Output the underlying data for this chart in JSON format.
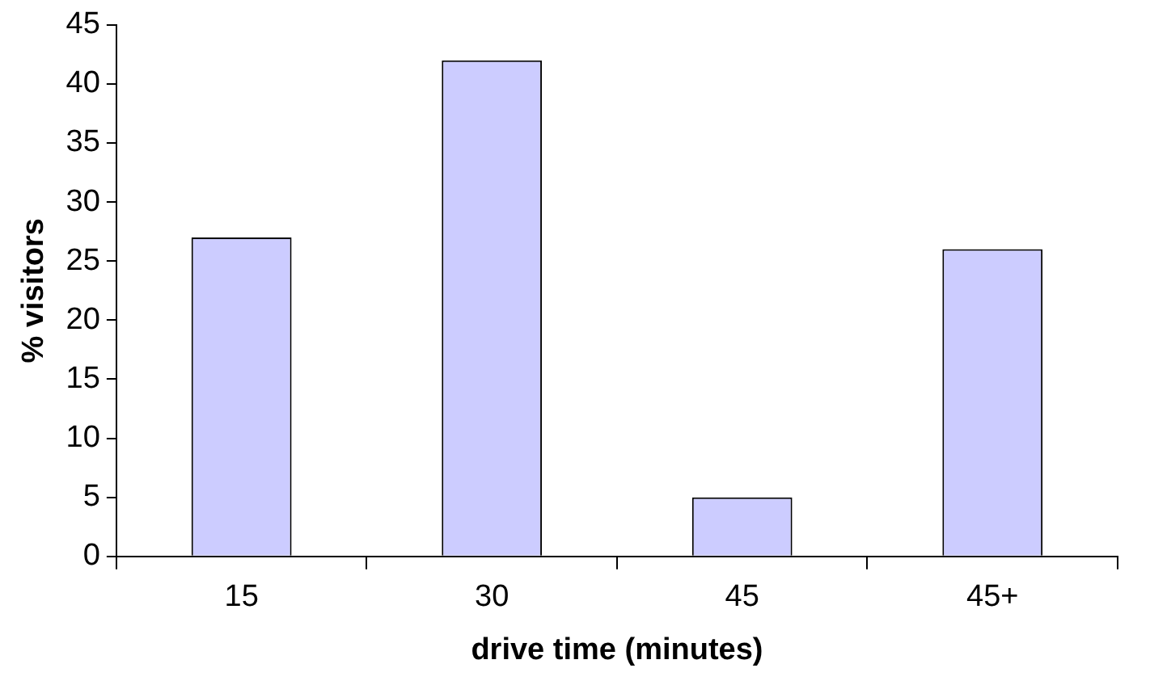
{
  "chart_data": {
    "type": "bar",
    "xlabel": "drive time (minutes)",
    "ylabel": "% visitors",
    "categories": [
      "15",
      "30",
      "45",
      "45+"
    ],
    "values": [
      27,
      42,
      5,
      26
    ],
    "color": "#ccccff",
    "ylim": [
      0,
      45
    ],
    "yticks": [
      0,
      5,
      10,
      15,
      20,
      25,
      30,
      35,
      40,
      45
    ],
    "grid": false,
    "legend": false
  }
}
